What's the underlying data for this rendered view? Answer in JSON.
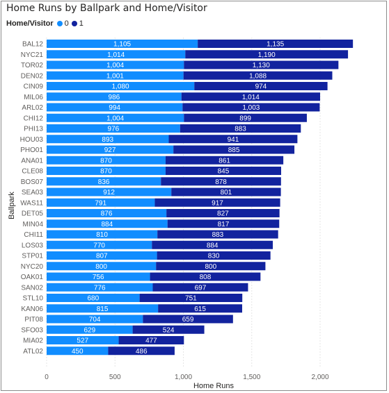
{
  "colors": {
    "series_0": "#118DFF",
    "series_1": "#12239E",
    "gridline": "#e5e5e5",
    "frame": "#8c8c8c"
  },
  "chart_data": {
    "type": "bar",
    "orientation": "horizontal",
    "stacked": true,
    "title": "Home Runs by Ballpark and Home/Visitor",
    "legend_title": "Home/Visitor",
    "legend_position": "top-left",
    "xlabel": "Home Runs",
    "ylabel": "Ballpark",
    "xlim": [
      0,
      2300
    ],
    "xticks": [
      0,
      500,
      1000,
      1500,
      2000
    ],
    "xtick_labels": [
      "0",
      "500",
      "1,000",
      "1,500",
      "2,000"
    ],
    "grid": true,
    "categories": [
      "BAL12",
      "NYC21",
      "TOR02",
      "DEN02",
      "CIN09",
      "MIL06",
      "ARL02",
      "CHI12",
      "PHI13",
      "HOU03",
      "PHO01",
      "ANA01",
      "CLE08",
      "BOS07",
      "SEA03",
      "WAS11",
      "DET05",
      "MIN04",
      "CHI11",
      "LOS03",
      "STP01",
      "NYC20",
      "OAK01",
      "SAN02",
      "STL10",
      "KAN06",
      "PIT08",
      "SFO03",
      "MIA02",
      "ATL02"
    ],
    "series": [
      {
        "name": "0",
        "values": [
          1105,
          1014,
          1004,
          1001,
          1080,
          986,
          994,
          1004,
          976,
          893,
          927,
          870,
          870,
          836,
          912,
          791,
          876,
          884,
          810,
          770,
          807,
          800,
          756,
          776,
          680,
          815,
          704,
          629,
          527,
          450
        ],
        "labels": [
          "1,105",
          "1,014",
          "1,004",
          "1,001",
          "1,080",
          "986",
          "994",
          "1,004",
          "976",
          "893",
          "927",
          "870",
          "870",
          "836",
          "912",
          "791",
          "876",
          "884",
          "810",
          "770",
          "807",
          "800",
          "756",
          "776",
          "680",
          "815",
          "704",
          "629",
          "527",
          "450"
        ]
      },
      {
        "name": "1",
        "values": [
          1135,
          1190,
          1130,
          1088,
          974,
          1014,
          1003,
          899,
          883,
          941,
          885,
          861,
          845,
          878,
          801,
          917,
          827,
          817,
          883,
          884,
          830,
          800,
          808,
          697,
          751,
          615,
          659,
          524,
          477,
          486
        ],
        "labels": [
          "1,135",
          "1,190",
          "1,130",
          "1,088",
          "974",
          "1,014",
          "1,003",
          "899",
          "883",
          "941",
          "885",
          "861",
          "845",
          "878",
          "801",
          "917",
          "827",
          "817",
          "883",
          "884",
          "830",
          "800",
          "808",
          "697",
          "751",
          "615",
          "659",
          "524",
          "477",
          "486"
        ]
      }
    ]
  }
}
